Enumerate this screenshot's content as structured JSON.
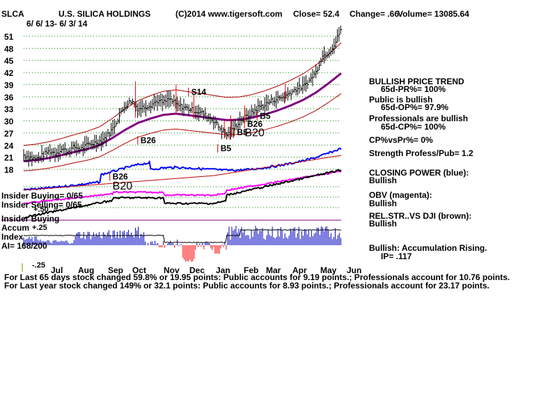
{
  "header": {
    "ticker": "SLCA",
    "company": "U.S. SILICA HOLDINGS",
    "copyright": "(C)2014 www.tigersoft.com",
    "close": "Close=  52.4",
    "change": "Change= .66",
    "volume": "Volume= 13085.64",
    "date_range": "6/ 6/ 13- 6/ 3/ 14"
  },
  "left_labels": {
    "insider_buying_1": "Insider Buying= 0/65",
    "insider_selling": "Insider Selling= 0/65",
    "plus50": "+.50",
    "insider_buying_2": "Insider Buying",
    "accum": "Accum",
    "plus25": "+.25",
    "index": "Index",
    "ai": "AI= 168/200",
    "minus25": "-.25"
  },
  "right_panel": [
    {
      "text": "BULLISH PRICE TREND",
      "row": 0
    },
    {
      "text": "65d-PR%= 100%",
      "row": 1,
      "indent": true
    },
    {
      "text": "Public is bullish",
      "row": 2
    },
    {
      "text": "65d-OP%= 97.9%",
      "row": 3,
      "indent": true
    },
    {
      "text": "Professionals are bullish",
      "row": 4
    },
    {
      "text": "65d-CP%= 100%",
      "row": 5,
      "indent": true
    },
    {
      "text": "CP%vsPr%=  0%",
      "row": 6
    },
    {
      "text": "Strength Profess/Pub= 1.2",
      "row": 7
    },
    {
      "text": "CLOSING POWER (blue):",
      "row": 8
    },
    {
      "text": "Bullish",
      "row": 9
    },
    {
      "text": "OBV (magenta):",
      "row": 10
    },
    {
      "text": "Bullish",
      "row": 11
    },
    {
      "text": "REL.STR..VS DJI (brown):",
      "row": 12
    },
    {
      "text": "Bullish",
      "row": 13
    },
    {
      "text": "Bullish: Accumulation Rising.",
      "row": 14
    },
    {
      "text": "IP=  .117",
      "row": 15,
      "indent": true
    }
  ],
  "footer": [
    "For Last 65 days stock changed  59.8% or  19.95 points:  Public accounts for  9.19 points.;  Professionals account for  10.76 points.",
    "For Last year stock changed  149% or  32.1 points:  Public accounts for  8.93 points.;  Professionals account for  23.17 points."
  ],
  "colors": {
    "price": "#000000",
    "bands": "#b00000",
    "ma": "#800080",
    "closing_power": "#0000ff",
    "obv": "#ff00ff",
    "rel_str": "#000000",
    "accum": "#0000c0",
    "accum_neg": "#ff0000",
    "grid": "#008000"
  },
  "chart_data": {
    "type": "line",
    "y_ticks": [
      51,
      48,
      45,
      42,
      39,
      36,
      33,
      30,
      27,
      24,
      21,
      18
    ],
    "ylim": [
      18,
      54
    ],
    "x_months": [
      "Jul",
      "Aug",
      "Sep",
      "Oct",
      "Nov",
      "Dec",
      "Jan",
      "Feb",
      "Mar",
      "Apr",
      "May",
      "Jun"
    ],
    "series": [
      {
        "type": "line",
        "x": [
          0,
          5,
          10,
          15,
          20,
          25,
          30,
          35,
          40,
          45,
          50,
          55,
          60,
          65,
          70,
          75,
          80,
          85,
          90,
          95,
          100,
          105,
          110,
          115,
          120,
          125,
          130,
          135,
          140,
          145,
          150,
          155,
          160,
          165,
          170,
          175,
          180,
          185,
          190,
          195,
          200,
          205,
          210,
          215,
          220,
          225,
          230,
          235,
          240,
          245,
          250
        ],
        "values": [
          21.5,
          21,
          20.5,
          21.5,
          22.5,
          22,
          23,
          22.5,
          23.5,
          23,
          24,
          24.5,
          25,
          26,
          28,
          31,
          34,
          35,
          33,
          33.5,
          34,
          35,
          34.5,
          35.5,
          34,
          33.5,
          33,
          32.5,
          32,
          31,
          30,
          28,
          26.5,
          28,
          30,
          31,
          32,
          33.5,
          34,
          35,
          35.5,
          36,
          37,
          38,
          38.5,
          40,
          42,
          46,
          47,
          49,
          53
        ]
      },
      {
        "name": "",
        "type": "line",
        "x": [
          0,
          10,
          20,
          30,
          40,
          50,
          60,
          70,
          80,
          90,
          100,
          110,
          120,
          130,
          140,
          150,
          160,
          170,
          180,
          190,
          200,
          210,
          220,
          230,
          240,
          250
        ],
        "values": [
          20,
          20.3,
          20.8,
          21.5,
          22.3,
          23,
          24,
          25.8,
          27.8,
          29.5,
          30.6,
          31.5,
          31.8,
          31.4,
          31,
          30.6,
          30.2,
          30.3,
          30.8,
          31.6,
          32.6,
          33.8,
          35.2,
          37,
          39.3,
          41.8
        ]
      }
    ],
    "annotations": [
      {
        "text": "S14",
        "x": 132,
        "y": 36.5
      },
      {
        "text": "B26",
        "x": 92,
        "y": 24.5
      },
      {
        "text": "B5",
        "x": 155,
        "y": 22.5
      },
      {
        "text": "B5",
        "x": 168,
        "y": 26.5
      },
      {
        "text": "B26",
        "x": 176,
        "y": 28.5
      },
      {
        "text": "B20",
        "x": 174,
        "y": 26.2
      },
      {
        "text": "B5",
        "x": 186,
        "y": 30.5
      },
      {
        "text": "B26",
        "x": 70,
        "y": 15.5
      },
      {
        "text": "B20",
        "x": 70,
        "y": 13
      }
    ]
  }
}
